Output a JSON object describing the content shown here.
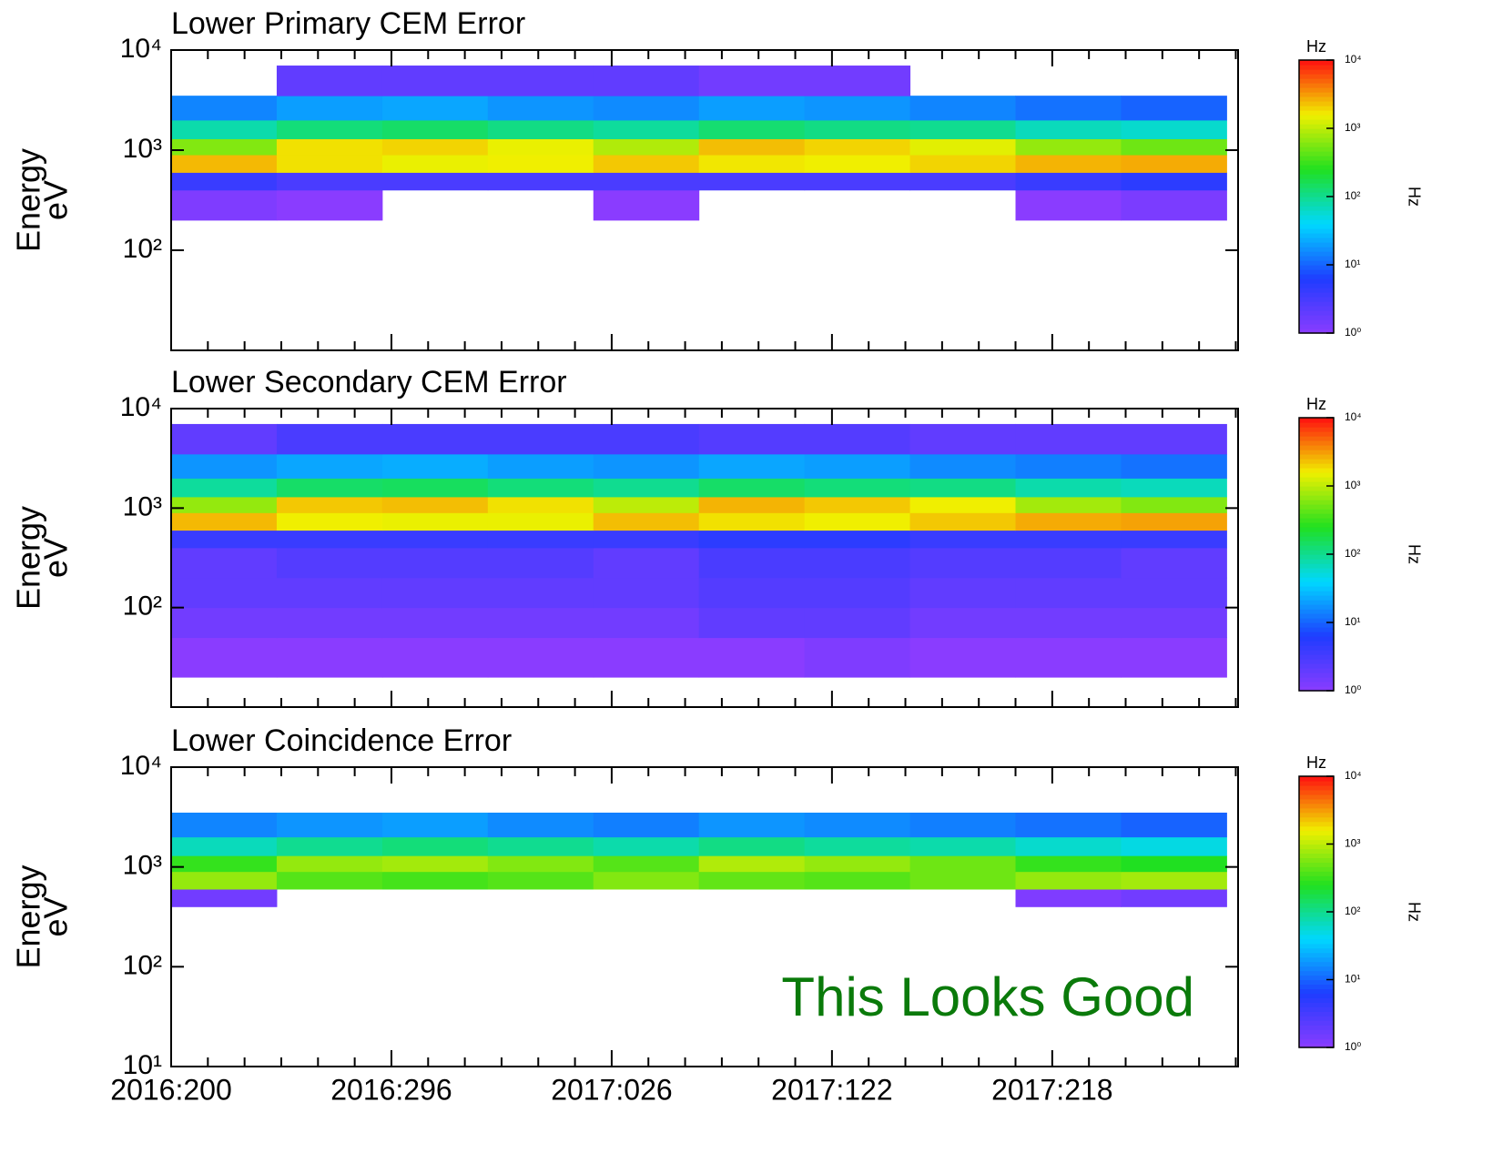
{
  "chart_data": [
    {
      "type": "heatmap",
      "title": "Lower Primary CEM Error",
      "ylabel": [
        "Energy",
        "eV"
      ],
      "ylog": true,
      "xlim": [
        200,
        665
      ],
      "ylim": [
        10,
        10000
      ],
      "yticks": [
        {
          "value": 10000,
          "label": "10⁴"
        },
        {
          "value": 1000,
          "label": "10³"
        },
        {
          "value": 100,
          "label": "10²"
        }
      ],
      "xbins": [
        200,
        246,
        292,
        338,
        384,
        430,
        476,
        522,
        568,
        614,
        660
      ],
      "ybins": [
        20,
        50,
        100,
        200,
        400,
        600,
        900,
        1300,
        2000,
        3500,
        7000
      ],
      "values": [
        [
          null,
          null,
          null,
          null,
          null,
          null,
          null,
          null,
          null,
          null
        ],
        [
          null,
          null,
          null,
          null,
          null,
          null,
          null,
          null,
          null,
          null
        ],
        [
          null,
          null,
          null,
          null,
          null,
          null,
          null,
          null,
          null,
          null
        ],
        [
          1.2,
          1,
          null,
          null,
          1,
          null,
          null,
          null,
          1,
          1.3
        ],
        [
          4,
          3,
          3,
          3,
          3,
          3,
          3,
          3,
          4,
          5
        ],
        [
          2500,
          1800,
          1500,
          1600,
          2200,
          1700,
          1600,
          2000,
          2600,
          2800
        ],
        [
          600,
          1800,
          2000,
          1500,
          900,
          2400,
          2000,
          1400,
          700,
          500
        ],
        [
          80,
          120,
          140,
          110,
          90,
          130,
          110,
          100,
          70,
          60
        ],
        [
          15,
          20,
          22,
          18,
          16,
          20,
          18,
          15,
          12,
          10
        ],
        [
          null,
          2,
          2,
          2,
          2,
          1.5,
          1.5,
          null,
          null,
          null
        ]
      ],
      "colorbar": {
        "title": "Hz",
        "label": "Hz",
        "lim": [
          1,
          10000
        ],
        "ticks": [
          {
            "value": 1,
            "label": "10⁰"
          },
          {
            "value": 10,
            "label": "10¹"
          },
          {
            "value": 100,
            "label": "10²"
          },
          {
            "value": 1000,
            "label": "10³"
          },
          {
            "value": 10000,
            "label": "10⁴"
          }
        ],
        "colors": [
          "#8a3cff",
          "#1e3cff",
          "#00d8ff",
          "#20e020",
          "#f0f000",
          "#ff1010"
        ]
      }
    },
    {
      "type": "heatmap",
      "title": "Lower Secondary CEM Error",
      "ylabel": [
        "Energy",
        "eV"
      ],
      "ylog": true,
      "xlim": [
        200,
        665
      ],
      "ylim": [
        10,
        10000
      ],
      "yticks": [
        {
          "value": 10000,
          "label": "10⁴"
        },
        {
          "value": 1000,
          "label": "10³"
        },
        {
          "value": 100,
          "label": "10²"
        }
      ],
      "xbins": [
        200,
        246,
        292,
        338,
        384,
        430,
        476,
        522,
        568,
        614,
        660
      ],
      "ybins": [
        20,
        50,
        100,
        200,
        400,
        600,
        900,
        1300,
        2000,
        3500,
        7000
      ],
      "values": [
        [
          1,
          1,
          1,
          1,
          1,
          1,
          1.2,
          1,
          1,
          1
        ],
        [
          1.5,
          1.5,
          1.5,
          1.5,
          1.5,
          2,
          2,
          1.5,
          1.5,
          1.5
        ],
        [
          2,
          2,
          2,
          2,
          2,
          2.5,
          2.5,
          2,
          2,
          2
        ],
        [
          2,
          2.5,
          2.5,
          2.5,
          2,
          3,
          3,
          2.5,
          2.5,
          2
        ],
        [
          4,
          4,
          4,
          4,
          4,
          5,
          5,
          4,
          4,
          4
        ],
        [
          2500,
          1600,
          1500,
          1500,
          2400,
          1800,
          1600,
          2200,
          2800,
          3000
        ],
        [
          700,
          2200,
          2400,
          1800,
          1000,
          2600,
          2200,
          1600,
          800,
          600
        ],
        [
          90,
          140,
          150,
          120,
          100,
          140,
          120,
          110,
          80,
          70
        ],
        [
          18,
          22,
          24,
          20,
          18,
          22,
          20,
          16,
          14,
          12
        ],
        [
          2,
          3,
          3,
          3,
          3,
          2.5,
          2.5,
          2,
          2,
          2
        ]
      ],
      "colorbar": {
        "title": "Hz",
        "label": "Hz",
        "lim": [
          1,
          10000
        ],
        "ticks": [
          {
            "value": 1,
            "label": "10⁰"
          },
          {
            "value": 10,
            "label": "10¹"
          },
          {
            "value": 100,
            "label": "10²"
          },
          {
            "value": 1000,
            "label": "10³"
          },
          {
            "value": 10000,
            "label": "10⁴"
          }
        ],
        "colors": [
          "#8a3cff",
          "#1e3cff",
          "#00d8ff",
          "#20e020",
          "#f0f000",
          "#ff1010"
        ]
      }
    },
    {
      "type": "heatmap",
      "title": "Lower Coincidence Error",
      "ylabel": [
        "Energy",
        "eV"
      ],
      "ylog": true,
      "xlim": [
        200,
        665
      ],
      "ylim": [
        10,
        10000
      ],
      "yticks": [
        {
          "value": 10000,
          "label": "10⁴"
        },
        {
          "value": 1000,
          "label": "10³"
        },
        {
          "value": 100,
          "label": "10²"
        },
        {
          "value": 10,
          "label": "10¹"
        }
      ],
      "xticks": [
        {
          "value": 200,
          "label": "2016:200"
        },
        {
          "value": 296,
          "label": "2016:296"
        },
        {
          "value": 392,
          "label": "2017:026"
        },
        {
          "value": 488,
          "label": "2017:122"
        },
        {
          "value": 584,
          "label": "2017:218"
        }
      ],
      "xminorticks": [
        216,
        232,
        248,
        264,
        280,
        312,
        328,
        344,
        360,
        376,
        408,
        424,
        440,
        456,
        472,
        504,
        520,
        536,
        552,
        568,
        600,
        616,
        632,
        648,
        664
      ],
      "annotation": "This Looks Good",
      "annotation_color": "#0a7a0a",
      "xbins": [
        200,
        246,
        292,
        338,
        384,
        430,
        476,
        522,
        568,
        614,
        660
      ],
      "ybins": [
        20,
        50,
        100,
        200,
        400,
        600,
        900,
        1300,
        2000,
        3500,
        7000
      ],
      "values": [
        [
          null,
          null,
          null,
          null,
          null,
          null,
          null,
          null,
          null,
          null
        ],
        [
          null,
          null,
          null,
          null,
          null,
          null,
          null,
          null,
          null,
          null
        ],
        [
          null,
          null,
          null,
          null,
          null,
          null,
          null,
          null,
          null,
          null
        ],
        [
          null,
          null,
          null,
          null,
          null,
          null,
          null,
          null,
          null,
          null
        ],
        [
          1.5,
          null,
          null,
          null,
          null,
          null,
          null,
          null,
          1.2,
          1.5
        ],
        [
          700,
          400,
          350,
          400,
          600,
          450,
          400,
          500,
          700,
          800
        ],
        [
          300,
          700,
          800,
          600,
          400,
          900,
          700,
          500,
          300,
          250
        ],
        [
          70,
          100,
          120,
          100,
          80,
          110,
          90,
          80,
          60,
          50
        ],
        [
          15,
          18,
          20,
          16,
          14,
          18,
          16,
          14,
          12,
          10
        ],
        [
          null,
          null,
          null,
          null,
          null,
          null,
          null,
          null,
          null,
          null
        ]
      ],
      "colorbar": {
        "title": "Hz",
        "label": "Hz",
        "lim": [
          1,
          10000
        ],
        "ticks": [
          {
            "value": 1,
            "label": "10⁰"
          },
          {
            "value": 10,
            "label": "10¹"
          },
          {
            "value": 100,
            "label": "10²"
          },
          {
            "value": 1000,
            "label": "10³"
          },
          {
            "value": 10000,
            "label": "10⁴"
          }
        ],
        "colors": [
          "#8a3cff",
          "#1e3cff",
          "#00d8ff",
          "#20e020",
          "#f0f000",
          "#ff1010"
        ]
      }
    }
  ]
}
